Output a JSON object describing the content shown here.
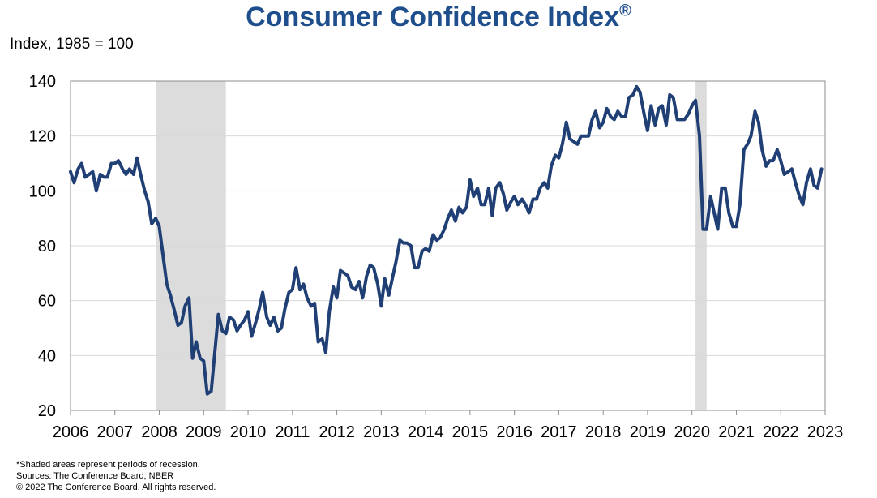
{
  "header": {
    "title": "Consumer Confidence Index",
    "title_mark": "®",
    "ylabel": "Index, 1985 = 100"
  },
  "footnotes": [
    "*Shaded areas represent periods of recession.",
    "Sources: The Conference Board; NBER",
    "© 2022 The Conference Board. All rights reserved."
  ],
  "chart_data": {
    "type": "line",
    "title": "Consumer Confidence Index®",
    "xlabel": "",
    "ylabel": "Index, 1985 = 100",
    "xlim": [
      2006.0,
      2023.0
    ],
    "ylim": [
      20,
      140
    ],
    "yticks": [
      20,
      40,
      60,
      80,
      100,
      120,
      140
    ],
    "xticks": [
      "2006",
      "2007",
      "2008",
      "2009",
      "2010",
      "2011",
      "2012",
      "2013",
      "2014",
      "2015",
      "2016",
      "2017",
      "2018",
      "2019",
      "2020",
      "2021",
      "2022",
      "2023"
    ],
    "grid": true,
    "line_color": "#1f3f75",
    "recession_color": "#dcdcdc",
    "recessions": [
      [
        2007.92,
        2009.5
      ],
      [
        2020.08,
        2020.33
      ]
    ],
    "series": [
      {
        "x": [
          2006.0,
          2006.08,
          2006.17,
          2006.25,
          2006.33,
          2006.42,
          2006.5,
          2006.58,
          2006.67,
          2006.75,
          2006.83,
          2006.92,
          2007.0,
          2007.08,
          2007.17,
          2007.25,
          2007.33,
          2007.42,
          2007.5,
          2007.58,
          2007.67,
          2007.75,
          2007.83,
          2007.92,
          2008.0,
          2008.08,
          2008.17,
          2008.25,
          2008.33,
          2008.42,
          2008.5,
          2008.58,
          2008.67,
          2008.75,
          2008.83,
          2008.92,
          2009.0,
          2009.08,
          2009.17,
          2009.25,
          2009.33,
          2009.42,
          2009.5,
          2009.58,
          2009.67,
          2009.75,
          2009.83,
          2009.92,
          2010.0,
          2010.08,
          2010.17,
          2010.25,
          2010.33,
          2010.42,
          2010.5,
          2010.58,
          2010.67,
          2010.75,
          2010.83,
          2010.92,
          2011.0,
          2011.08,
          2011.17,
          2011.25,
          2011.33,
          2011.42,
          2011.5,
          2011.58,
          2011.67,
          2011.75,
          2011.83,
          2011.92,
          2012.0,
          2012.08,
          2012.17,
          2012.25,
          2012.33,
          2012.42,
          2012.5,
          2012.58,
          2012.67,
          2012.75,
          2012.83,
          2012.92,
          2013.0,
          2013.08,
          2013.17,
          2013.25,
          2013.33,
          2013.42,
          2013.5,
          2013.58,
          2013.67,
          2013.75,
          2013.83,
          2013.92,
          2014.0,
          2014.08,
          2014.17,
          2014.25,
          2014.33,
          2014.42,
          2014.5,
          2014.58,
          2014.67,
          2014.75,
          2014.83,
          2014.92,
          2015.0,
          2015.08,
          2015.17,
          2015.25,
          2015.33,
          2015.42,
          2015.5,
          2015.58,
          2015.67,
          2015.75,
          2015.83,
          2015.92,
          2016.0,
          2016.08,
          2016.17,
          2016.25,
          2016.33,
          2016.42,
          2016.5,
          2016.58,
          2016.67,
          2016.75,
          2016.83,
          2016.92,
          2017.0,
          2017.08,
          2017.17,
          2017.25,
          2017.33,
          2017.42,
          2017.5,
          2017.58,
          2017.67,
          2017.75,
          2017.83,
          2017.92,
          2018.0,
          2018.08,
          2018.17,
          2018.25,
          2018.33,
          2018.42,
          2018.5,
          2018.58,
          2018.67,
          2018.75,
          2018.83,
          2018.92,
          2019.0,
          2019.08,
          2019.17,
          2019.25,
          2019.33,
          2019.42,
          2019.5,
          2019.58,
          2019.67,
          2019.75,
          2019.83,
          2019.92,
          2020.0,
          2020.08,
          2020.17,
          2020.25,
          2020.33,
          2020.42,
          2020.5,
          2020.58,
          2020.67,
          2020.75,
          2020.83,
          2020.92,
          2021.0,
          2021.08,
          2021.17,
          2021.25,
          2021.33,
          2021.42,
          2021.5,
          2021.58,
          2021.67,
          2021.75,
          2021.83,
          2021.92,
          2022.0,
          2022.08,
          2022.17,
          2022.25,
          2022.33,
          2022.42,
          2022.5,
          2022.58,
          2022.67,
          2022.75,
          2022.83,
          2022.92
        ],
        "values": [
          107,
          103,
          108,
          110,
          105,
          106,
          107,
          100,
          106,
          105,
          105,
          110,
          110,
          111,
          108,
          106,
          108,
          106,
          112,
          106,
          100,
          96,
          88,
          90,
          87,
          77,
          66,
          62,
          57,
          51,
          52,
          58,
          61,
          39,
          45,
          39,
          38,
          26,
          27,
          41,
          55,
          49,
          48,
          54,
          53,
          49,
          51,
          53,
          56,
          47,
          52,
          57,
          63,
          54,
          51,
          54,
          49,
          50,
          57,
          63,
          64,
          72,
          64,
          66,
          61,
          58,
          59,
          45,
          46,
          41,
          56,
          65,
          61,
          71,
          70,
          69,
          65,
          64,
          67,
          61,
          69,
          73,
          72,
          66,
          58,
          68,
          62,
          68,
          74,
          82,
          81,
          81,
          80,
          72,
          72,
          78,
          79,
          78,
          84,
          82,
          83,
          86,
          90,
          93,
          89,
          94,
          92,
          94,
          104,
          98,
          101,
          95,
          95,
          101,
          91,
          101,
          103,
          99,
          93,
          96,
          98,
          95,
          97,
          95,
          92,
          97,
          97,
          101,
          103,
          101,
          109,
          113,
          112,
          117,
          125,
          119,
          118,
          117,
          120,
          120,
          120,
          126,
          129,
          123,
          125,
          130,
          127,
          126,
          129,
          127,
          127,
          134,
          135,
          138,
          136,
          128,
          122,
          131,
          124,
          130,
          131,
          124,
          135,
          134,
          126,
          126,
          126,
          128,
          131,
          133,
          120,
          86,
          86,
          98,
          92,
          86,
          101,
          101,
          92,
          87,
          87,
          95,
          115,
          117,
          120,
          129,
          125,
          115,
          109,
          111,
          111,
          115,
          111,
          106,
          107,
          108,
          103,
          98,
          95,
          103,
          108,
          102,
          101,
          108
        ]
      }
    ]
  }
}
